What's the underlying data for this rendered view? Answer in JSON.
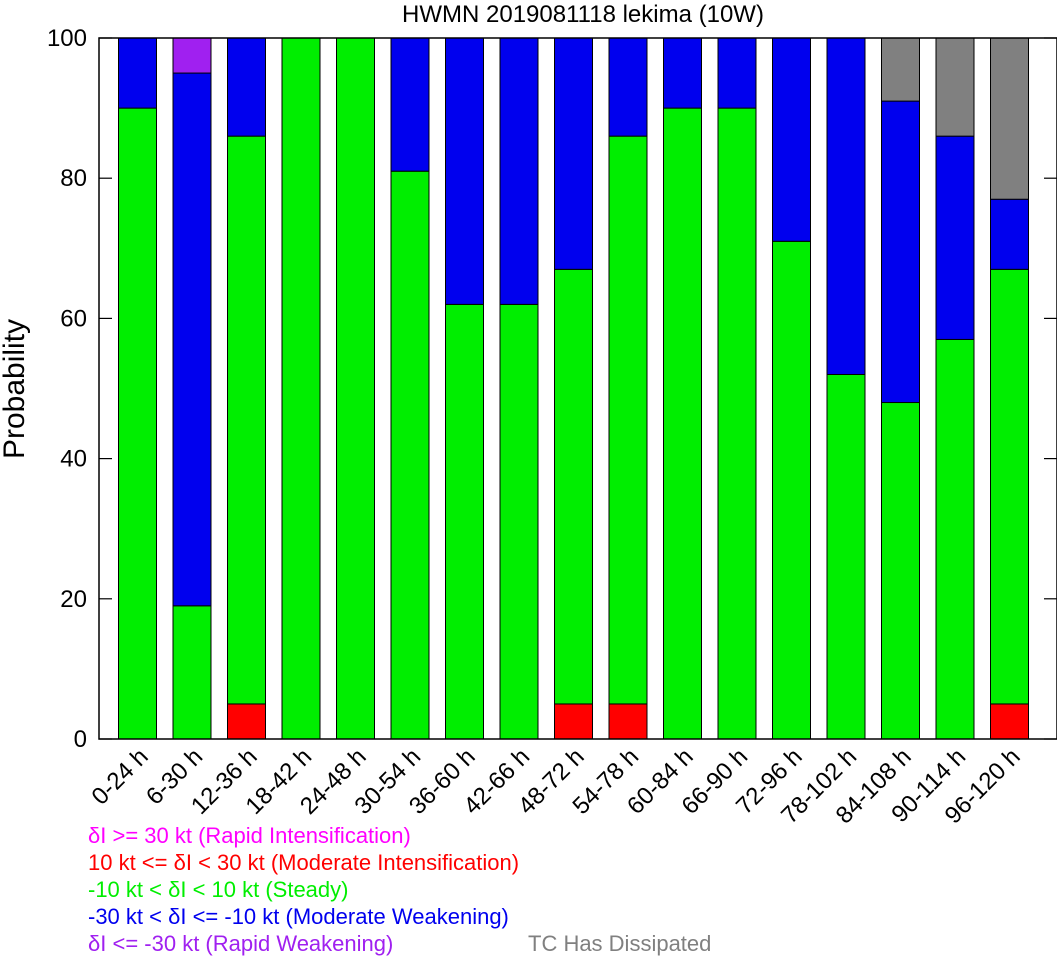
{
  "chart_data": {
    "type": "bar",
    "stacked": true,
    "title": "HWMN 2019081118 lekima (10W)",
    "xlabel": "",
    "ylabel": "Probability",
    "ylim": [
      0,
      100
    ],
    "yticks": [
      0,
      20,
      40,
      60,
      80,
      100
    ],
    "grid": false,
    "categories": [
      "0-24 h",
      "6-30 h",
      "12-36 h",
      "18-42 h",
      "24-48 h",
      "30-54 h",
      "36-60 h",
      "42-66 h",
      "48-72 h",
      "54-78 h",
      "60-84 h",
      "66-90 h",
      "72-96 h",
      "78-102 h",
      "84-108 h",
      "90-114 h",
      "96-120 h"
    ],
    "series": [
      {
        "color": "#ff00ff",
        "values": [
          0,
          0,
          0,
          0,
          0,
          0,
          0,
          0,
          0,
          0,
          0,
          0,
          0,
          0,
          0,
          0,
          0
        ]
      },
      {
        "color": "#ff0000",
        "values": [
          0,
          0,
          5,
          0,
          0,
          0,
          0,
          0,
          5,
          5,
          0,
          0,
          0,
          0,
          0,
          0,
          5
        ]
      },
      {
        "color": "#00ee00",
        "values": [
          90,
          19,
          81,
          100,
          100,
          81,
          62,
          62,
          62,
          81,
          90,
          90,
          71,
          52,
          48,
          57,
          62
        ]
      },
      {
        "color": "#0000ee",
        "values": [
          10,
          76,
          14,
          0,
          0,
          19,
          38,
          38,
          33,
          14,
          10,
          10,
          29,
          48,
          43,
          29,
          10
        ]
      },
      {
        "color": "#a020f0",
        "values": [
          0,
          5,
          0,
          0,
          0,
          0,
          0,
          0,
          0,
          0,
          0,
          0,
          0,
          0,
          0,
          0,
          0
        ]
      },
      {
        "color": "#808080",
        "values": [
          0,
          0,
          0,
          0,
          0,
          0,
          0,
          0,
          0,
          0,
          0,
          0,
          0,
          0,
          9,
          14,
          23
        ]
      }
    ],
    "stack_order": [
      1,
      2,
      3,
      0,
      4,
      5
    ]
  },
  "legend": [
    {
      "text": "δI >= 30 kt (Rapid Intensification)",
      "color": "#ff00ff"
    },
    {
      "text": "10 kt <= δI < 30 kt (Moderate Intensification)",
      "color": "#ff0000"
    },
    {
      "text": "-10 kt < δI < 10 kt (Steady)",
      "color": "#00ee00"
    },
    {
      "text": "-30 kt < δI <= -10 kt (Moderate Weakening)",
      "color": "#0000ee"
    },
    {
      "text": "δI <= -30 kt (Rapid Weakening)",
      "color": "#a020f0"
    },
    {
      "text": "TC Has Dissipated",
      "color": "#808080"
    }
  ]
}
